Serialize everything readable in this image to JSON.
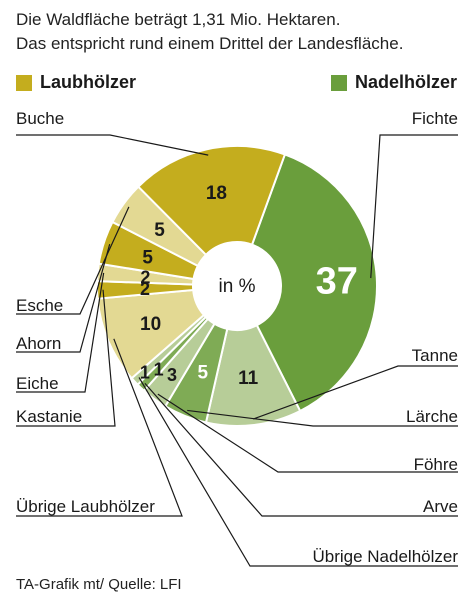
{
  "subtitle_line1": "Die Waldfläche beträgt 1,31 Mio. Hektaren.",
  "subtitle_line2": "Das entspricht rund einem Drittel der Landesfläche.",
  "legend": [
    {
      "name": "Laubhölzer",
      "color": "#c4ad1e"
    },
    {
      "name": "Nadelhölzer",
      "color": "#6a9e3c"
    }
  ],
  "center_label": "in %",
  "source": "TA-Grafik mt/ Quelle: LFI",
  "chart_data": {
    "type": "pie",
    "style": "donut",
    "unit": "%",
    "slices": [
      {
        "label": "Fichte",
        "value": 37,
        "group": "Nadelhölzer",
        "color": "#6a9e3c"
      },
      {
        "label": "Tanne",
        "value": 11,
        "group": "Nadelhölzer",
        "color": "#b7cd98"
      },
      {
        "label": "Lärche",
        "value": 5,
        "group": "Nadelhölzer",
        "color": "#7fab55"
      },
      {
        "label": "Föhre",
        "value": 3,
        "group": "Nadelhölzer",
        "color": "#b7cd98"
      },
      {
        "label": "Arve",
        "value": 1,
        "group": "Nadelhölzer",
        "color": "#7fab55"
      },
      {
        "label": "Übrige Nadelhölzer",
        "value": 1,
        "group": "Nadelhölzer",
        "color": "#b7cd98"
      },
      {
        "label": "Übrige Laubhölzer",
        "value": 10,
        "group": "Laubhölzer",
        "color": "#e3d993"
      },
      {
        "label": "Kastanie",
        "value": 2,
        "group": "Laubhölzer",
        "color": "#c4ad1e"
      },
      {
        "label": "Eiche",
        "value": 2,
        "group": "Laubhölzer",
        "color": "#e3d993"
      },
      {
        "label": "Ahorn",
        "value": 5,
        "group": "Laubhölzer",
        "color": "#c4ad1e"
      },
      {
        "label": "Esche",
        "value": 5,
        "group": "Laubhölzer",
        "color": "#e3d993"
      },
      {
        "label": "Buche",
        "value": 18,
        "group": "Laubhölzer",
        "color": "#c4ad1e"
      }
    ]
  }
}
